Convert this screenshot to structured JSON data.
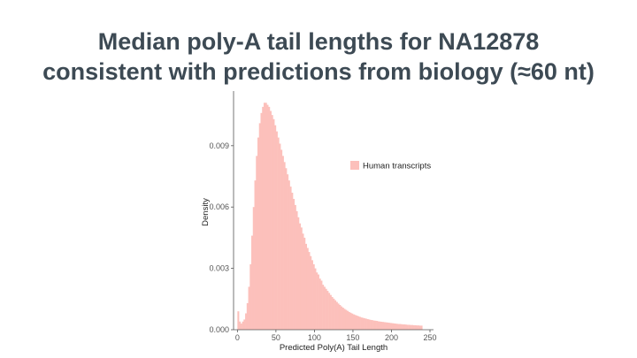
{
  "slide": {
    "title_line1": "Median poly-A tail lengths for NA12878",
    "title_line2": "consistent with predictions from biology (≈60 nt)"
  },
  "colors": {
    "title": "#3d4a54",
    "bars": "#fcc0bb",
    "axis": "#555555"
  },
  "chart_data": {
    "type": "bar",
    "title": "",
    "xlabel": "Predicted Poly(A) Tail Length",
    "ylabel": "Density",
    "xlim": [
      -5,
      250
    ],
    "ylim": [
      0,
      0.0115
    ],
    "x_ticks": [
      0,
      50,
      100,
      150,
      200,
      250
    ],
    "y_ticks": [
      0.0,
      0.003,
      0.006,
      0.009
    ],
    "y_tick_labels": [
      "0.000",
      "0.003",
      "0.006",
      "0.009"
    ],
    "grid": false,
    "legend_position": "right",
    "bin_width": 2,
    "series": [
      {
        "name": "Human transcripts",
        "bin_start": [
          0,
          2,
          4,
          6,
          8,
          10,
          12,
          14,
          16,
          18,
          20,
          22,
          24,
          26,
          28,
          30,
          32,
          34,
          36,
          38,
          40,
          42,
          44,
          46,
          48,
          50,
          52,
          54,
          56,
          58,
          60,
          62,
          64,
          66,
          68,
          70,
          72,
          74,
          76,
          78,
          80,
          82,
          84,
          86,
          88,
          90,
          92,
          94,
          96,
          98,
          100,
          102,
          104,
          106,
          108,
          110,
          112,
          114,
          116,
          118,
          120,
          122,
          124,
          126,
          128,
          130,
          132,
          134,
          136,
          138,
          140,
          142,
          144,
          146,
          148,
          150,
          152,
          154,
          156,
          158,
          160,
          162,
          164,
          166,
          168,
          170,
          172,
          174,
          176,
          178,
          180,
          182,
          184,
          186,
          188,
          190,
          192,
          194,
          196,
          198,
          200,
          202,
          204,
          206,
          208,
          210,
          212,
          214,
          216,
          218,
          220,
          222,
          224,
          226,
          228,
          230,
          232,
          234,
          236,
          238
        ],
        "density": [
          0.0009,
          0.0004,
          0.0003,
          0.0004,
          0.0005,
          0.0008,
          0.0013,
          0.0021,
          0.0032,
          0.0046,
          0.006,
          0.0073,
          0.0085,
          0.0094,
          0.0101,
          0.0106,
          0.0109,
          0.0111,
          0.0111,
          0.011,
          0.0109,
          0.0107,
          0.0105,
          0.0103,
          0.01,
          0.0097,
          0.0094,
          0.0091,
          0.0088,
          0.0085,
          0.0082,
          0.0079,
          0.0076,
          0.0073,
          0.007,
          0.0067,
          0.0064,
          0.0061,
          0.0058,
          0.0055,
          0.0052,
          0.005,
          0.0047,
          0.0045,
          0.0042,
          0.004,
          0.0038,
          0.0036,
          0.0034,
          0.0032,
          0.003,
          0.0028,
          0.0027,
          0.0025,
          0.0024,
          0.0022,
          0.0021,
          0.002,
          0.0019,
          0.0018,
          0.0017,
          0.0016,
          0.00152,
          0.00144,
          0.00136,
          0.00128,
          0.00121,
          0.00114,
          0.00108,
          0.00102,
          0.00097,
          0.00092,
          0.00087,
          0.00083,
          0.00079,
          0.00075,
          0.00072,
          0.00069,
          0.00066,
          0.00063,
          0.0006,
          0.00058,
          0.00056,
          0.00054,
          0.00052,
          0.0005,
          0.00048,
          0.00047,
          0.00045,
          0.00044,
          0.00043,
          0.00041,
          0.0004,
          0.00039,
          0.00038,
          0.00037,
          0.00036,
          0.00035,
          0.00034,
          0.00033,
          0.00032,
          0.00031,
          0.0003,
          0.00029,
          0.00028,
          0.00028,
          0.00027,
          0.00026,
          0.00026,
          0.00025,
          0.00024,
          0.00024,
          0.00023,
          0.00023,
          0.00022,
          0.00022,
          0.00021,
          0.00021,
          0.0002,
          0.0002
        ]
      }
    ]
  }
}
